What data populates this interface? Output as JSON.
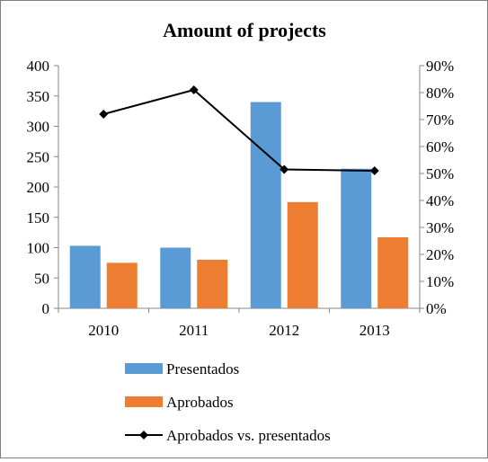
{
  "chart_data": {
    "type": "bar",
    "title": "Amount of projects",
    "categories": [
      "2010",
      "2011",
      "2012",
      "2013"
    ],
    "series": [
      {
        "name": "Presentados",
        "type": "bar",
        "axis": "left",
        "color": "#5b9bd5",
        "values": [
          103,
          100,
          340,
          230
        ]
      },
      {
        "name": "Aprobados",
        "type": "bar",
        "axis": "left",
        "color": "#ed7d31",
        "values": [
          75,
          80,
          175,
          117
        ]
      },
      {
        "name": "Aprobados vs. presentados",
        "type": "line",
        "axis": "right",
        "color": "#000000",
        "marker": "diamond",
        "values": [
          0.72,
          0.81,
          0.515,
          0.51
        ]
      }
    ],
    "y_left": {
      "ylim": [
        0,
        400
      ],
      "ticks": [
        0,
        50,
        100,
        150,
        200,
        250,
        300,
        350,
        400
      ],
      "tick_labels": [
        "0",
        "50",
        "100",
        "150",
        "200",
        "250",
        "300",
        "350",
        "400"
      ]
    },
    "y_right": {
      "ylim": [
        0,
        0.9
      ],
      "ticks": [
        0,
        0.1,
        0.2,
        0.3,
        0.4,
        0.5,
        0.6,
        0.7,
        0.8,
        0.9
      ],
      "tick_labels": [
        "0%",
        "10%",
        "20%",
        "30%",
        "40%",
        "50%",
        "60%",
        "70%",
        "80%",
        "90%"
      ]
    },
    "grid": false,
    "legend_position": "bottom"
  }
}
